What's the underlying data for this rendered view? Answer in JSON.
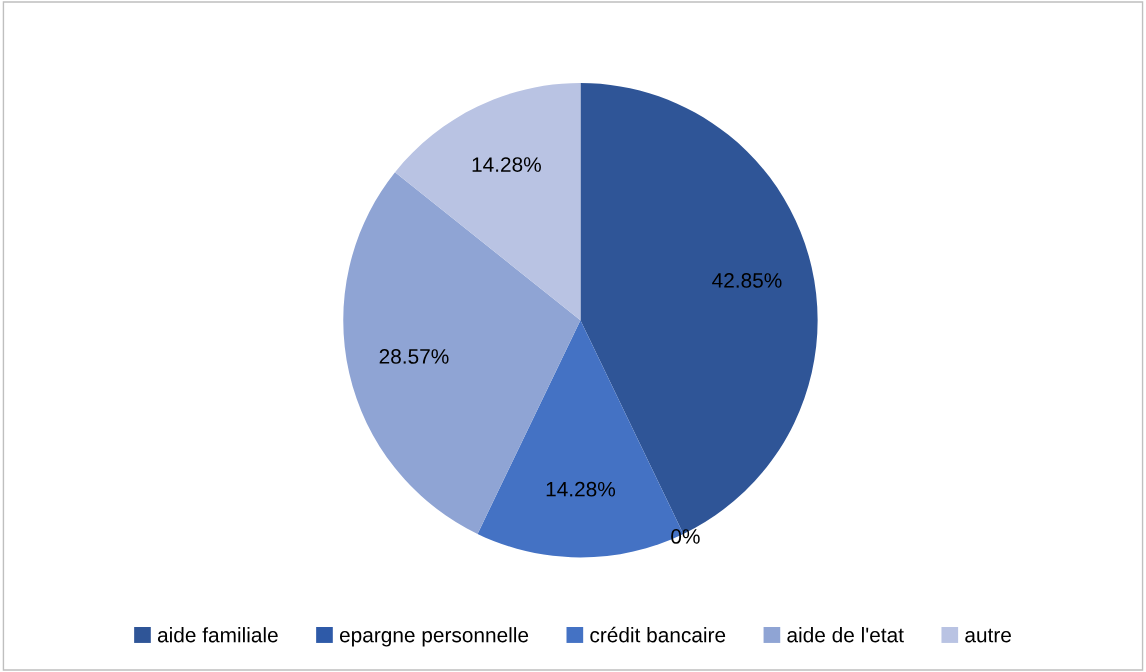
{
  "chart_data": {
    "type": "pie",
    "categories": [
      "aide familiale",
      "epargne personnelle",
      "crédit bancaire",
      "aide de l'etat",
      "autre"
    ],
    "values": [
      42.85,
      0,
      14.28,
      28.57,
      14.28
    ],
    "colors": [
      "#2f5597",
      "#2e5aa8",
      "#4472c4",
      "#8fa4d4",
      "#b9c3e3"
    ],
    "value_labels": [
      "42.85%",
      "0%",
      "14.28%",
      "28.57%",
      "14.28%"
    ],
    "legend": "bottom"
  }
}
